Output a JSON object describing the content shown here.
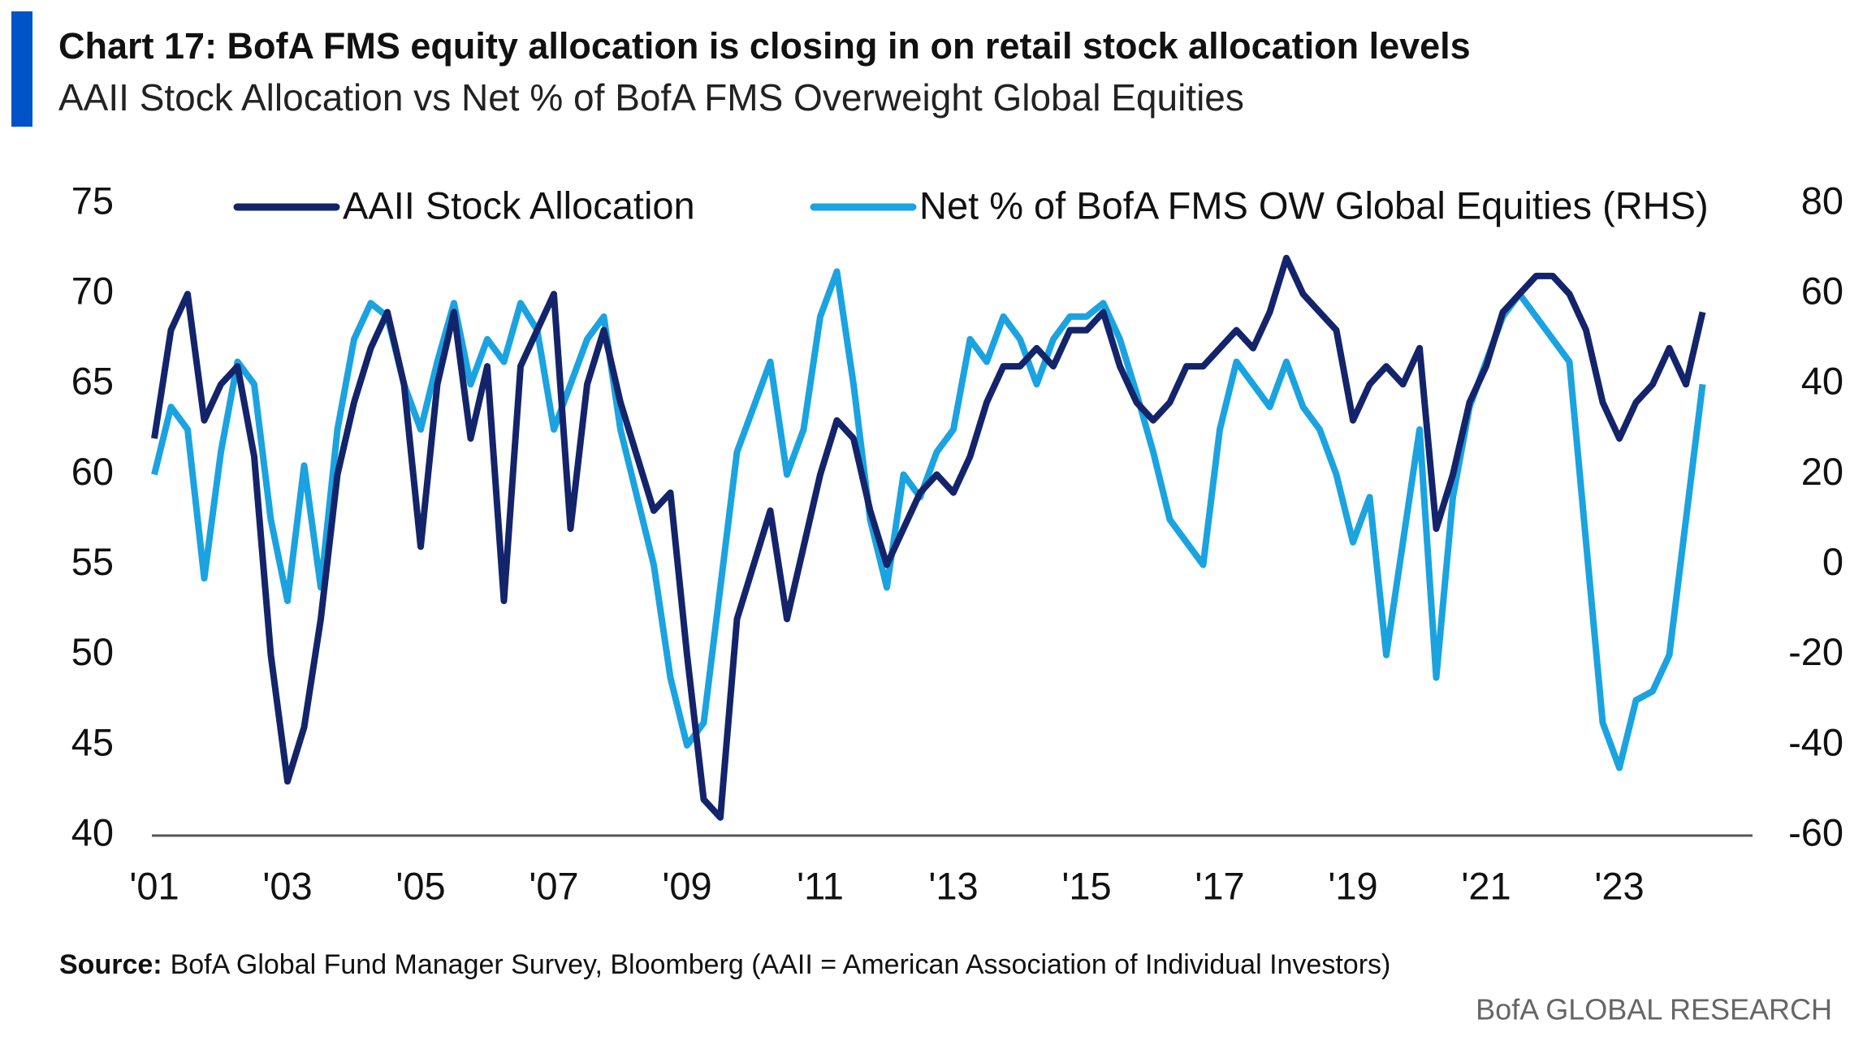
{
  "chart_data": {
    "type": "line",
    "title": "Chart 17: BofA FMS equity allocation is closing in on retail stock allocation levels",
    "subtitle": "AAII Stock Allocation vs Net % of BofA FMS Overweight Global Equities",
    "x": [
      2001,
      2001.25,
      2001.5,
      2001.75,
      2002,
      2002.25,
      2002.5,
      2002.75,
      2003,
      2003.25,
      2003.5,
      2003.75,
      2004,
      2004.25,
      2004.5,
      2004.75,
      2005,
      2005.25,
      2005.5,
      2005.75,
      2006,
      2006.25,
      2006.5,
      2006.75,
      2007,
      2007.25,
      2007.5,
      2007.75,
      2008,
      2008.25,
      2008.5,
      2008.75,
      2009,
      2009.25,
      2009.5,
      2009.75,
      2010,
      2010.25,
      2010.5,
      2010.75,
      2011,
      2011.25,
      2011.5,
      2011.75,
      2012,
      2012.25,
      2012.5,
      2012.75,
      2013,
      2013.25,
      2013.5,
      2013.75,
      2014,
      2014.25,
      2014.5,
      2014.75,
      2015,
      2015.25,
      2015.5,
      2015.75,
      2016,
      2016.25,
      2016.5,
      2016.75,
      2017,
      2017.25,
      2017.5,
      2017.75,
      2018,
      2018.25,
      2018.5,
      2018.75,
      2019,
      2019.25,
      2019.5,
      2019.75,
      2020,
      2020.25,
      2020.5,
      2020.75,
      2021,
      2021.25,
      2021.5,
      2021.75,
      2022,
      2022.25,
      2022.5,
      2022.75,
      2023,
      2023.25,
      2023.5,
      2023.75,
      2024,
      2024.25
    ],
    "series": [
      {
        "name": "AAII Stock Allocation",
        "color": "#14246b",
        "axis": "y",
        "values": [
          62,
          68,
          70,
          63,
          65,
          66,
          61,
          50,
          43,
          46,
          52,
          60,
          64,
          67,
          69,
          65,
          56,
          65,
          69,
          62,
          66,
          53,
          66,
          68,
          70,
          57,
          65,
          68,
          64,
          61,
          58,
          59,
          50,
          42,
          41,
          52,
          55,
          58,
          52,
          56,
          60,
          63,
          62,
          58,
          55,
          57,
          59,
          60,
          59,
          61,
          64,
          66,
          66,
          67,
          66,
          68,
          68,
          69,
          66,
          64,
          63,
          64,
          66,
          66,
          67,
          68,
          67,
          69,
          72,
          70,
          69,
          68,
          63,
          65,
          66,
          65,
          67,
          57,
          60,
          64,
          66,
          69,
          70,
          71,
          71,
          70,
          68,
          64,
          62,
          64,
          65,
          67,
          65,
          69
        ]
      },
      {
        "name": "Net % of BofA FMS OW Global Equities (RHS)",
        "color": "#1aa3e0",
        "axis": "y2",
        "values": [
          20,
          35,
          30,
          -3,
          25,
          45,
          40,
          10,
          -8,
          22,
          -5,
          30,
          50,
          58,
          55,
          40,
          30,
          45,
          58,
          40,
          50,
          45,
          58,
          52,
          30,
          40,
          50,
          55,
          30,
          15,
          0,
          -25,
          -40,
          -35,
          -5,
          25,
          35,
          45,
          20,
          30,
          55,
          65,
          40,
          10,
          -5,
          20,
          15,
          25,
          30,
          50,
          45,
          55,
          50,
          40,
          50,
          55,
          55,
          58,
          50,
          38,
          25,
          10,
          5,
          0,
          30,
          45,
          40,
          35,
          45,
          35,
          30,
          20,
          5,
          15,
          -20,
          5,
          30,
          -25,
          15,
          35,
          45,
          55,
          60,
          55,
          50,
          45,
          5,
          -35,
          -45,
          -30,
          -28,
          -20,
          10,
          40
        ]
      }
    ],
    "xlim": [
      2001,
      2025
    ],
    "xticks": [
      {
        "value": 2001,
        "label": "'01"
      },
      {
        "value": 2003,
        "label": "'03"
      },
      {
        "value": 2005,
        "label": "'05"
      },
      {
        "value": 2007,
        "label": "'07"
      },
      {
        "value": 2009,
        "label": "'09"
      },
      {
        "value": 2011,
        "label": "'11"
      },
      {
        "value": 2013,
        "label": "'13"
      },
      {
        "value": 2015,
        "label": "'15"
      },
      {
        "value": 2017,
        "label": "'17"
      },
      {
        "value": 2019,
        "label": "'19"
      },
      {
        "value": 2021,
        "label": "'21"
      },
      {
        "value": 2023,
        "label": "'23"
      }
    ],
    "ylim": [
      40,
      75
    ],
    "yticks": [
      40,
      45,
      50,
      55,
      60,
      65,
      70,
      75
    ],
    "y2lim": [
      -60,
      80
    ],
    "y2ticks": [
      -60,
      -40,
      -20,
      0,
      20,
      40,
      60,
      80
    ],
    "grid": false,
    "legend": "top",
    "source": {
      "label": "Source:",
      "text": "BofA Global Fund Manager Survey, Bloomberg (AAII = American Association of Individual Investors)"
    },
    "footer": "BofA GLOBAL RESEARCH"
  }
}
